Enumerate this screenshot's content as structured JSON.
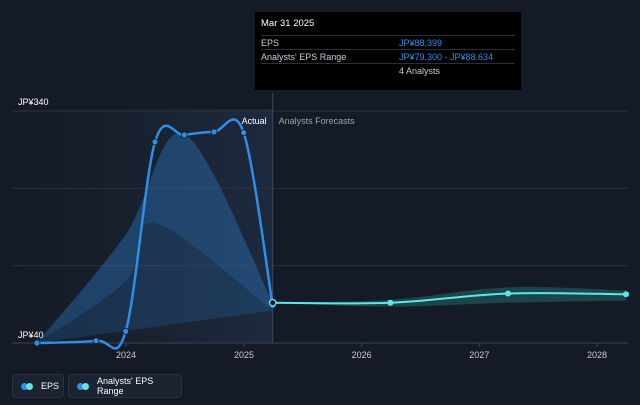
{
  "chart_data": {
    "type": "line",
    "y_axis": {
      "labels": [
        "JP¥340",
        "JP¥40"
      ],
      "min": 40,
      "max": 340
    },
    "x_axis": {
      "ticks": [
        "2024",
        "2025",
        "2026",
        "2027",
        "2028"
      ]
    },
    "divider_labels": {
      "actual": "Actual",
      "forecast": "Analysts Forecasts"
    },
    "series": [
      {
        "name": "EPS",
        "color": "#2f8fe8",
        "points": [
          {
            "x": "2023-03-31",
            "y": 40
          },
          {
            "x": "2023-09-30",
            "y": 43
          },
          {
            "x": "2023-12-31",
            "y": 55
          },
          {
            "x": "2024-03-31",
            "y": 300
          },
          {
            "x": "2024-06-30",
            "y": 309
          },
          {
            "x": "2024-09-30",
            "y": 313
          },
          {
            "x": "2024-12-31",
            "y": 312
          },
          {
            "x": "2025-03-31",
            "y": 88.399
          }
        ]
      },
      {
        "name": "EPS forecast",
        "color": "#5ee6e8",
        "points": [
          {
            "x": "2025-03-31",
            "y": 92
          },
          {
            "x": "2026-03-31",
            "y": 92
          },
          {
            "x": "2027-03-31",
            "y": 104
          },
          {
            "x": "2028-03-31",
            "y": 103
          }
        ]
      }
    ],
    "range_band": {
      "name": "Analysts' EPS Range",
      "upper": [
        {
          "x": "2025-03-31",
          "y": 92
        },
        {
          "x": "2026-03-31",
          "y": 96
        },
        {
          "x": "2027-03-31",
          "y": 112
        },
        {
          "x": "2028-03-31",
          "y": 108
        }
      ],
      "lower": [
        {
          "x": "2025-03-31",
          "y": 92
        },
        {
          "x": "2026-03-31",
          "y": 87
        },
        {
          "x": "2027-03-31",
          "y": 92
        },
        {
          "x": "2028-03-31",
          "y": 95
        }
      ]
    },
    "historical_range_band": {
      "upper": [
        {
          "x": "2023-03-31",
          "y": 40
        },
        {
          "x": "2023-12-31",
          "y": 180
        },
        {
          "x": "2024-06-30",
          "y": 310
        },
        {
          "x": "2025-03-31",
          "y": 92
        }
      ],
      "lower": [
        {
          "x": "2023-03-31",
          "y": 40
        },
        {
          "x": "2023-12-31",
          "y": 120
        },
        {
          "x": "2024-03-31",
          "y": 195
        },
        {
          "x": "2025-03-31",
          "y": 82
        }
      ]
    }
  },
  "tooltip": {
    "date": "Mar 31 2025",
    "rows": [
      {
        "label": "EPS",
        "value": "JP¥88.399"
      },
      {
        "label": "Analysts' EPS Range",
        "value": "JP¥79.300 - JP¥88.634"
      }
    ],
    "analysts": "4 Analysts"
  },
  "legend": [
    {
      "label": "EPS",
      "colors": [
        "#2f8fe8",
        "#5ee6e8"
      ]
    },
    {
      "label": "Analysts' EPS Range",
      "colors": [
        "#2f8fe8",
        "#5ee6e8"
      ]
    }
  ]
}
